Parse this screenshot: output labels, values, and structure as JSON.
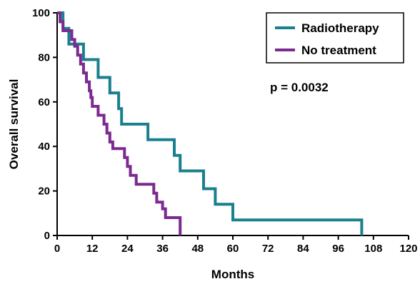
{
  "chart_data": {
    "type": "line",
    "xlabel": "Months",
    "ylabel": "Overall survival",
    "xlim": [
      0,
      120
    ],
    "ylim": [
      0,
      100
    ],
    "x_ticks": [
      0,
      12,
      24,
      36,
      48,
      60,
      72,
      84,
      96,
      108,
      120
    ],
    "y_ticks": [
      0,
      20,
      40,
      60,
      80,
      100
    ],
    "grid": false,
    "legend_position": "top-right",
    "annotation": "p = 0.0032",
    "series": [
      {
        "name": "Radiotherapy",
        "color": "#1a7f8e",
        "step_points": [
          [
            0,
            100
          ],
          [
            2,
            100
          ],
          [
            2,
            93
          ],
          [
            4,
            93
          ],
          [
            4,
            86
          ],
          [
            9,
            86
          ],
          [
            9,
            79
          ],
          [
            14,
            79
          ],
          [
            14,
            71
          ],
          [
            18,
            71
          ],
          [
            18,
            64
          ],
          [
            21,
            64
          ],
          [
            21,
            57
          ],
          [
            22,
            57
          ],
          [
            22,
            50
          ],
          [
            31,
            50
          ],
          [
            31,
            43
          ],
          [
            40,
            43
          ],
          [
            40,
            36
          ],
          [
            42,
            36
          ],
          [
            42,
            29
          ],
          [
            50,
            29
          ],
          [
            50,
            21
          ],
          [
            54,
            21
          ],
          [
            54,
            14
          ],
          [
            60,
            14
          ],
          [
            60,
            7
          ],
          [
            104,
            7
          ],
          [
            104,
            0
          ]
        ]
      },
      {
        "name": "No treatment",
        "color": "#7b2a8f",
        "step_points": [
          [
            0,
            100
          ],
          [
            1,
            100
          ],
          [
            1,
            96
          ],
          [
            2,
            96
          ],
          [
            2,
            92
          ],
          [
            5,
            92
          ],
          [
            5,
            88
          ],
          [
            6,
            88
          ],
          [
            6,
            85
          ],
          [
            7,
            85
          ],
          [
            7,
            81
          ],
          [
            8,
            81
          ],
          [
            8,
            77
          ],
          [
            9,
            77
          ],
          [
            9,
            73
          ],
          [
            10,
            73
          ],
          [
            10,
            69
          ],
          [
            11,
            69
          ],
          [
            11,
            65
          ],
          [
            11.5,
            65
          ],
          [
            11.5,
            62
          ],
          [
            12,
            62
          ],
          [
            12,
            58
          ],
          [
            14,
            58
          ],
          [
            14,
            54
          ],
          [
            16,
            54
          ],
          [
            16,
            50
          ],
          [
            17,
            50
          ],
          [
            17,
            46
          ],
          [
            18,
            46
          ],
          [
            18,
            42
          ],
          [
            19,
            42
          ],
          [
            19,
            39
          ],
          [
            23,
            39
          ],
          [
            23,
            35
          ],
          [
            24,
            35
          ],
          [
            24,
            31
          ],
          [
            25,
            31
          ],
          [
            25,
            27
          ],
          [
            27,
            27
          ],
          [
            27,
            23
          ],
          [
            33,
            23
          ],
          [
            33,
            19
          ],
          [
            34,
            19
          ],
          [
            34,
            15
          ],
          [
            36,
            15
          ],
          [
            36,
            12
          ],
          [
            37,
            12
          ],
          [
            37,
            8
          ],
          [
            42,
            8
          ],
          [
            42,
            0
          ]
        ]
      }
    ]
  }
}
